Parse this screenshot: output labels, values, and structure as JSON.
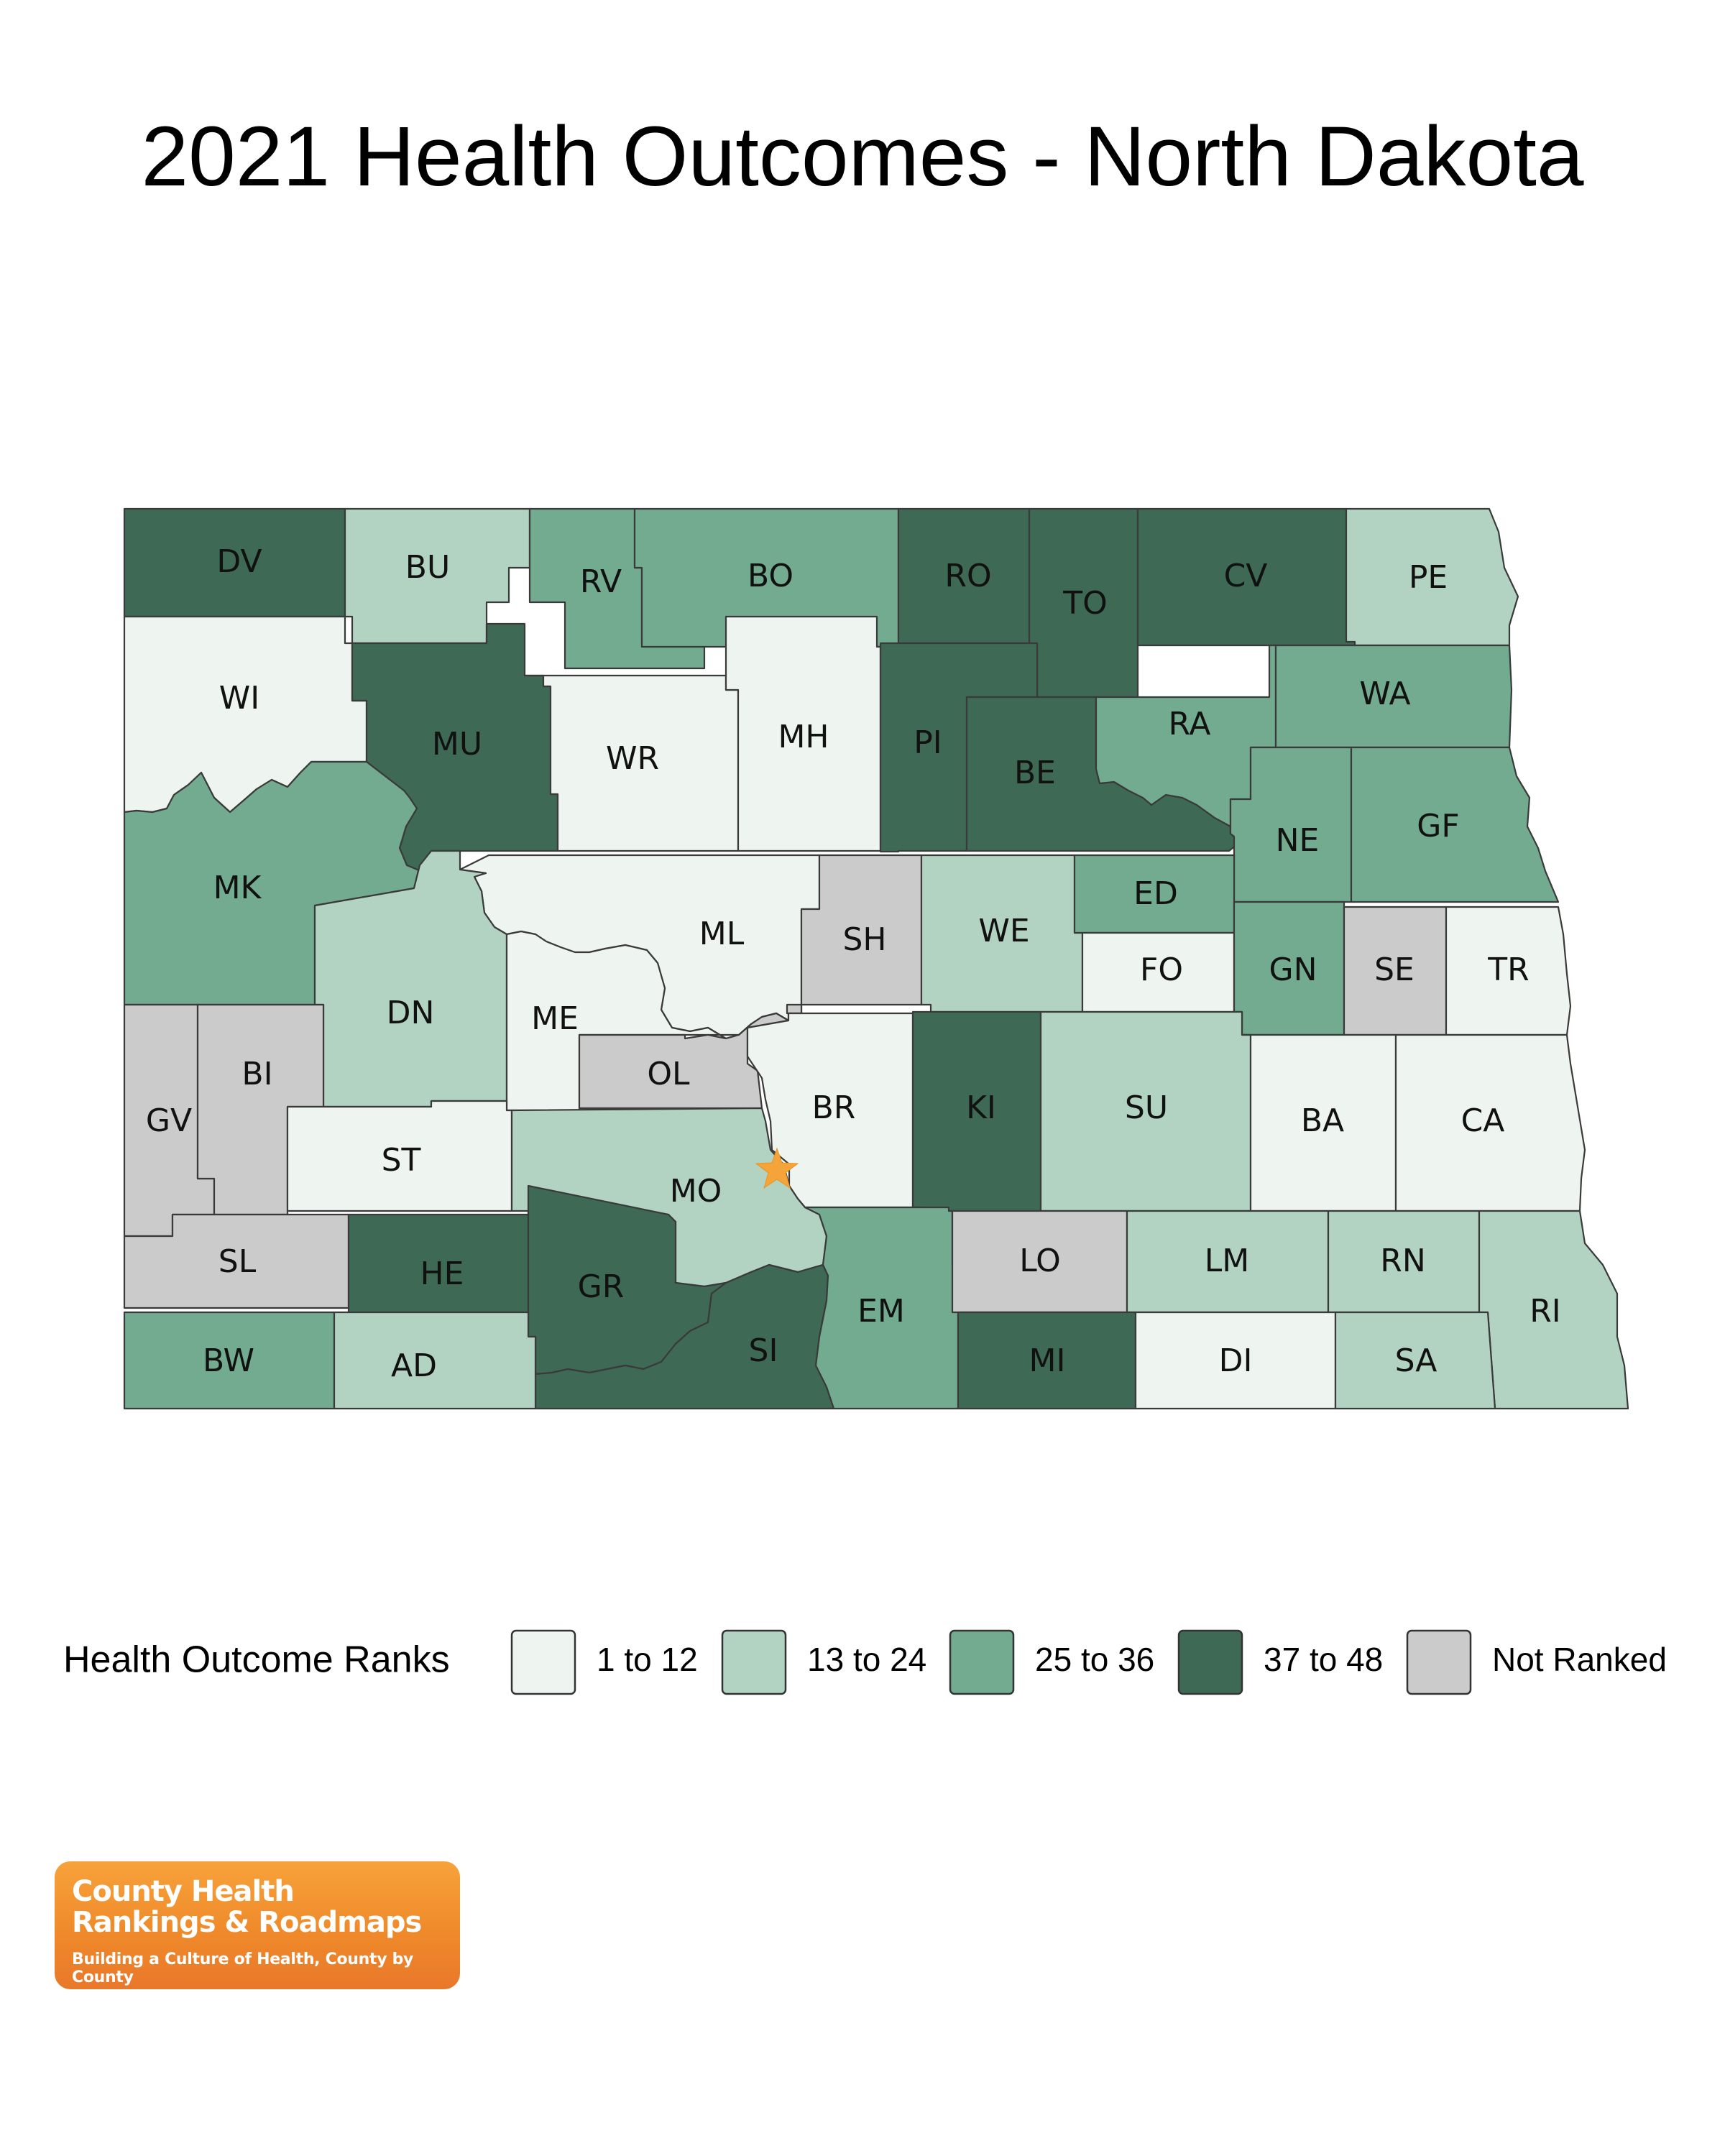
{
  "title": "2021 Health Outcomes - North Dakota",
  "legend": {
    "title": "Health Outcome Ranks",
    "items": [
      {
        "label": "1 to 12",
        "color": "#eef4f0"
      },
      {
        "label": "13 to 24",
        "color": "#b2d3c1"
      },
      {
        "label": "25 to 36",
        "color": "#72ab90"
      },
      {
        "label": "37 to 48",
        "color": "#3e6a55"
      },
      {
        "label": "Not Ranked",
        "color": "#cbcbcb"
      }
    ]
  },
  "counties": [
    {
      "label": "DV",
      "rank_group": "37 to 48"
    },
    {
      "label": "BU",
      "rank_group": "13 to 24"
    },
    {
      "label": "RV",
      "rank_group": "25 to 36"
    },
    {
      "label": "BO",
      "rank_group": "25 to 36"
    },
    {
      "label": "RO",
      "rank_group": "37 to 48"
    },
    {
      "label": "TO",
      "rank_group": "37 to 48"
    },
    {
      "label": "CV",
      "rank_group": "37 to 48"
    },
    {
      "label": "PE",
      "rank_group": "13 to 24"
    },
    {
      "label": "WI",
      "rank_group": "1 to 12"
    },
    {
      "label": "MU",
      "rank_group": "37 to 48"
    },
    {
      "label": "WR",
      "rank_group": "1 to 12"
    },
    {
      "label": "MH",
      "rank_group": "1 to 12"
    },
    {
      "label": "PI",
      "rank_group": "37 to 48"
    },
    {
      "label": "BE",
      "rank_group": "37 to 48"
    },
    {
      "label": "RA",
      "rank_group": "25 to 36"
    },
    {
      "label": "WA",
      "rank_group": "25 to 36"
    },
    {
      "label": "NE",
      "rank_group": "25 to 36"
    },
    {
      "label": "GF",
      "rank_group": "25 to 36"
    },
    {
      "label": "MK",
      "rank_group": "25 to 36"
    },
    {
      "label": "ML",
      "rank_group": "1 to 12"
    },
    {
      "label": "SH",
      "rank_group": "Not Ranked"
    },
    {
      "label": "WE",
      "rank_group": "13 to 24"
    },
    {
      "label": "ED",
      "rank_group": "25 to 36"
    },
    {
      "label": "FO",
      "rank_group": "1 to 12"
    },
    {
      "label": "GN",
      "rank_group": "25 to 36"
    },
    {
      "label": "SE",
      "rank_group": "Not Ranked"
    },
    {
      "label": "TR",
      "rank_group": "1 to 12"
    },
    {
      "label": "DN",
      "rank_group": "13 to 24"
    },
    {
      "label": "ME",
      "rank_group": "1 to 12"
    },
    {
      "label": "OL",
      "rank_group": "Not Ranked"
    },
    {
      "label": "BR",
      "rank_group": "1 to 12"
    },
    {
      "label": "KI",
      "rank_group": "37 to 48"
    },
    {
      "label": "SU",
      "rank_group": "13 to 24"
    },
    {
      "label": "BA",
      "rank_group": "1 to 12"
    },
    {
      "label": "CA",
      "rank_group": "1 to 12"
    },
    {
      "label": "GV",
      "rank_group": "Not Ranked"
    },
    {
      "label": "BI",
      "rank_group": "Not Ranked"
    },
    {
      "label": "ST",
      "rank_group": "1 to 12"
    },
    {
      "label": "MO",
      "rank_group": "13 to 24"
    },
    {
      "label": "SL",
      "rank_group": "Not Ranked"
    },
    {
      "label": "HE",
      "rank_group": "37 to 48"
    },
    {
      "label": "GR",
      "rank_group": "37 to 48"
    },
    {
      "label": "SI",
      "rank_group": "37 to 48"
    },
    {
      "label": "EM",
      "rank_group": "25 to 36"
    },
    {
      "label": "LO",
      "rank_group": "Not Ranked"
    },
    {
      "label": "LM",
      "rank_group": "13 to 24"
    },
    {
      "label": "RN",
      "rank_group": "13 to 24"
    },
    {
      "label": "RI",
      "rank_group": "13 to 24"
    },
    {
      "label": "BW",
      "rank_group": "25 to 36"
    },
    {
      "label": "AD",
      "rank_group": "13 to 24"
    },
    {
      "label": "MI",
      "rank_group": "37 to 48"
    },
    {
      "label": "DI",
      "rank_group": "1 to 12"
    },
    {
      "label": "SA",
      "rank_group": "13 to 24"
    }
  ],
  "marker": {
    "type": "star",
    "meaning": "state capital",
    "color": "#f5a43a"
  },
  "logo": {
    "line1": "County Health",
    "line2": "Rankings & Roadmaps",
    "tagline": "Building a Culture of Health, County by County"
  }
}
